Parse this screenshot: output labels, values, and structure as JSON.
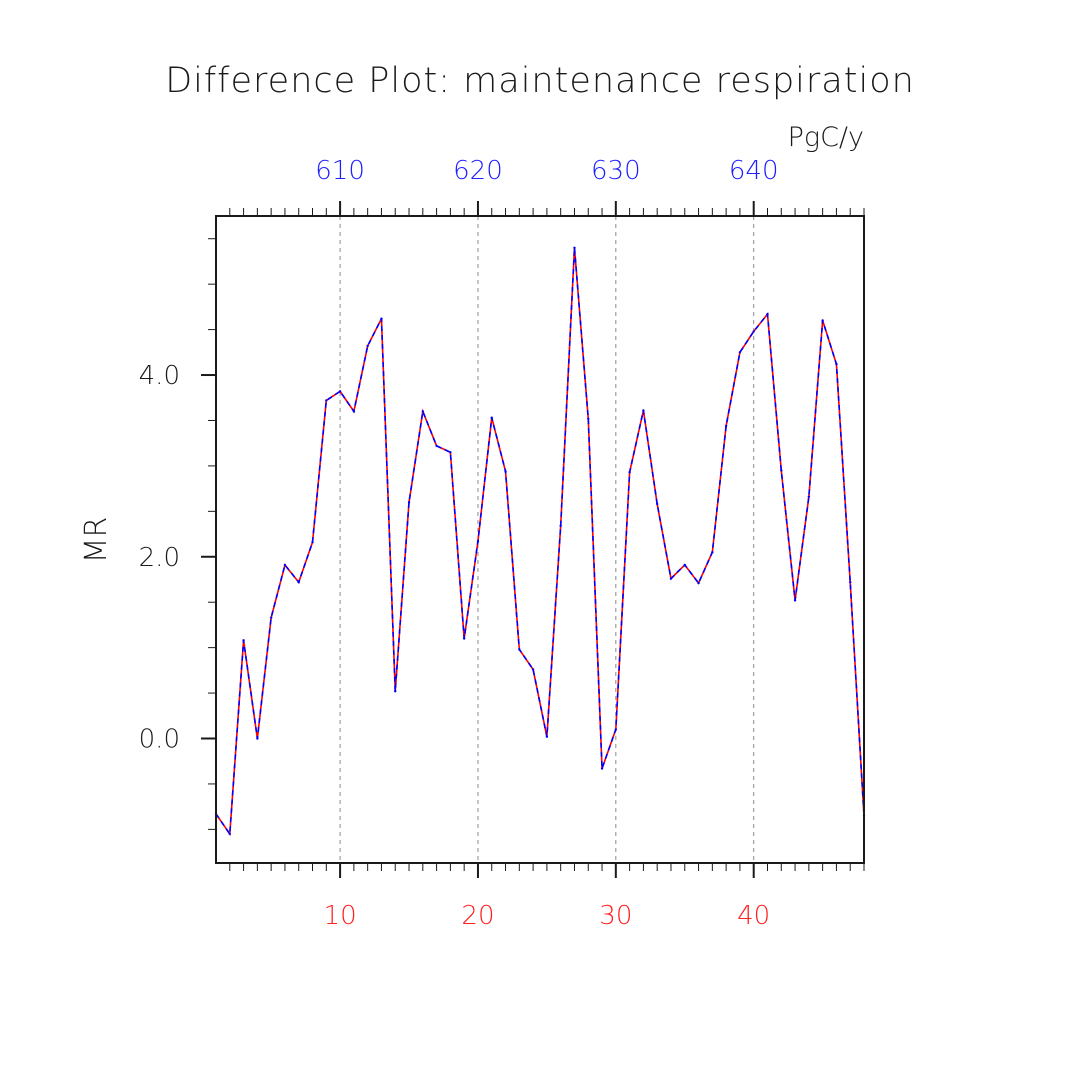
{
  "chart_data": {
    "type": "line",
    "title": "Difference Plot: maintenance respiration",
    "units": "PgC/y",
    "ylabel": "MR",
    "xlim": [
      1,
      48
    ],
    "ylim": [
      -1.37,
      5.75
    ],
    "x_ticks_bottom": [
      10,
      20,
      30,
      40
    ],
    "x_ticks_top": [
      {
        "value": 10,
        "label": "610"
      },
      {
        "value": 20,
        "label": "620"
      },
      {
        "value": 30,
        "label": "630"
      },
      {
        "value": 40,
        "label": "640"
      }
    ],
    "y_ticks": [
      {
        "value": 0.0,
        "label": "0.0"
      },
      {
        "value": 2.0,
        "label": "2.0"
      },
      {
        "value": 4.0,
        "label": "4.0"
      }
    ],
    "grid": "vertical-dashed",
    "colors": {
      "series_a": "#ff0000",
      "series_b": "#0000ff",
      "bottom_axis": "#ff2020",
      "top_axis": "#2020ff"
    },
    "x": [
      1,
      2,
      3,
      4,
      5,
      6,
      7,
      8,
      9,
      10,
      11,
      12,
      13,
      14,
      15,
      16,
      17,
      18,
      19,
      20,
      21,
      22,
      23,
      24,
      25,
      26,
      27,
      28,
      29,
      30,
      31,
      32,
      33,
      34,
      35,
      36,
      37,
      38,
      39,
      40,
      41,
      42,
      43,
      44,
      45,
      46,
      47,
      48
    ],
    "series": [
      {
        "values": [
          -0.83,
          -1.05,
          1.08,
          0.0,
          1.33,
          1.91,
          1.72,
          2.16,
          3.72,
          3.82,
          3.6,
          4.32,
          4.62,
          0.52,
          2.6,
          3.6,
          3.22,
          3.15,
          1.1,
          2.17,
          3.53,
          2.94,
          0.98,
          0.76,
          0.02,
          2.34,
          5.4,
          3.52,
          -0.33,
          0.1,
          2.93,
          3.61,
          2.58,
          1.76,
          1.91,
          1.71,
          2.05,
          3.44,
          4.25,
          4.48,
          4.67,
          2.95,
          1.52,
          2.66,
          4.6,
          4.12,
          1.72,
          -0.85
        ]
      }
    ]
  }
}
